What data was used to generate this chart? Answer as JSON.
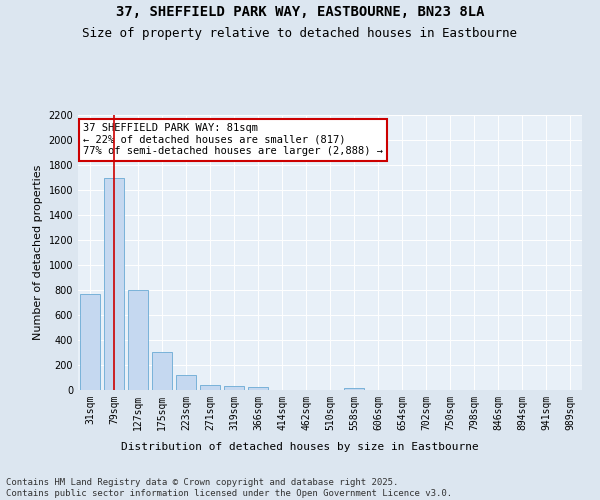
{
  "title_line1": "37, SHEFFIELD PARK WAY, EASTBOURNE, BN23 8LA",
  "title_line2": "Size of property relative to detached houses in Eastbourne",
  "xlabel": "Distribution of detached houses by size in Eastbourne",
  "ylabel": "Number of detached properties",
  "categories": [
    "31sqm",
    "79sqm",
    "127sqm",
    "175sqm",
    "223sqm",
    "271sqm",
    "319sqm",
    "366sqm",
    "414sqm",
    "462sqm",
    "510sqm",
    "558sqm",
    "606sqm",
    "654sqm",
    "702sqm",
    "750sqm",
    "798sqm",
    "846sqm",
    "894sqm",
    "941sqm",
    "989sqm"
  ],
  "values": [
    770,
    1700,
    800,
    305,
    120,
    40,
    30,
    25,
    0,
    0,
    0,
    15,
    0,
    0,
    0,
    0,
    0,
    0,
    0,
    0,
    0
  ],
  "bar_color": "#c5d8f0",
  "bar_edge_color": "#6aaad4",
  "vline_x": 1,
  "vline_color": "#cc0000",
  "annotation_text": "37 SHEFFIELD PARK WAY: 81sqm\n← 22% of detached houses are smaller (817)\n77% of semi-detached houses are larger (2,888) →",
  "annotation_box_color": "#ffffff",
  "annotation_box_edge": "#cc0000",
  "ylim": [
    0,
    2200
  ],
  "yticks": [
    0,
    200,
    400,
    600,
    800,
    1000,
    1200,
    1400,
    1600,
    1800,
    2000,
    2200
  ],
  "bg_color": "#dce6f0",
  "plot_bg_color": "#e8f0f8",
  "footer": "Contains HM Land Registry data © Crown copyright and database right 2025.\nContains public sector information licensed under the Open Government Licence v3.0.",
  "title_fontsize": 10,
  "subtitle_fontsize": 9,
  "axis_label_fontsize": 8,
  "tick_fontsize": 7,
  "annotation_fontsize": 7.5,
  "footer_fontsize": 6.5
}
